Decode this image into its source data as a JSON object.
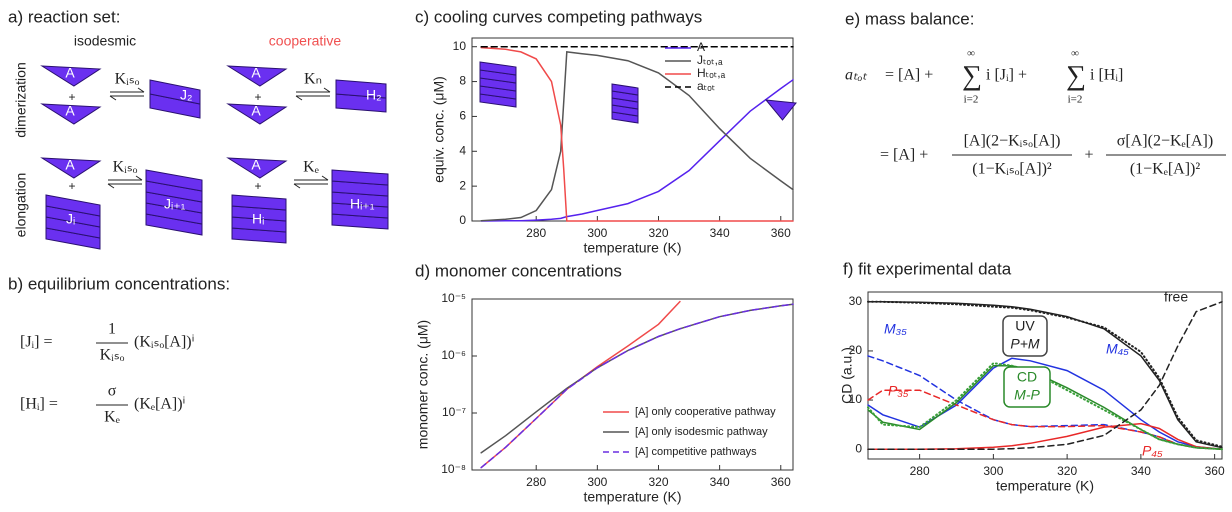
{
  "panels": {
    "a": {
      "title": "a) reaction set:",
      "isodesmic": "isodesmic",
      "cooperative": "cooperative",
      "dimerization": "dimerization",
      "elongation": "elongation",
      "monomer": "A",
      "plus": "+",
      "K_iso": "Kᵢₛₒ",
      "K_n": "Kₙ",
      "K_e": "Kₑ",
      "J2": "J₂",
      "H2": "H₂",
      "Ji": "Jᵢ",
      "Ji1": "Jᵢ₊₁",
      "Hi": "Hᵢ",
      "Hi1": "Hᵢ₊₁"
    },
    "b": {
      "title": "b) equilibrium concentrations:",
      "eq1": {
        "lhs": "[Jᵢ] =",
        "num": "1",
        "den": "Kᵢₛₒ",
        "rhs": "(Kᵢₛₒ[A])ⁱ"
      },
      "eq2": {
        "lhs": "[Hᵢ] =",
        "num": "σ",
        "den": "Kₑ",
        "rhs": "(Kₑ[A])ⁱ"
      }
    },
    "e": {
      "title": "e) mass balance:",
      "line1": {
        "lhs": "aₜₒₜ",
        "start": "= [A] +",
        "sum": "∑",
        "upper": "∞",
        "lower": "i=2",
        "term1": "i [Jᵢ] +",
        "term2": "i [Hᵢ]"
      },
      "line2": {
        "start": "= [A] +",
        "num1": "[A](2−Kᵢₛₒ[A])",
        "den1": "(1−Kᵢₛₒ[A])²",
        "plus": "+",
        "num2": "σ[A](2−Kₑ[A])",
        "den2": "(1−Kₑ[A])²"
      }
    }
  },
  "chart_data": [
    {
      "type": "line",
      "title": "c) cooling curves competing pathways",
      "x_label": "temperature (K)",
      "y_label": "equiv. conc. (μM)",
      "xlim": [
        259,
        364
      ],
      "ylim": [
        0,
        10.5
      ],
      "xticks": [
        280,
        300,
        320,
        340,
        360
      ],
      "yticks": [
        0,
        2,
        4,
        6,
        8,
        10
      ],
      "legend": "upper right",
      "x": [
        262,
        270,
        275,
        280,
        285,
        288,
        289,
        290,
        295,
        300,
        310,
        320,
        330,
        340,
        350,
        360,
        364
      ],
      "series": [
        {
          "name": "A",
          "color": "#5522ee",
          "style": "solid",
          "values": [
            0,
            0.01,
            0.02,
            0.05,
            0.1,
            0.15,
            0.2,
            0.25,
            0.4,
            0.6,
            1.0,
            1.7,
            2.9,
            4.6,
            6.3,
            7.6,
            8.1
          ]
        },
        {
          "name": "Jₜₒₜ,ₐ",
          "color": "#555555",
          "style": "solid",
          "values": [
            0.02,
            0.1,
            0.2,
            0.6,
            1.8,
            4.0,
            6.8,
            9.7,
            9.6,
            9.5,
            9.2,
            8.5,
            7.2,
            5.3,
            3.6,
            2.3,
            1.8
          ]
        },
        {
          "name": "Hₜₒₜ,ₐ",
          "color": "#f04a4a",
          "style": "solid",
          "values": [
            9.95,
            9.85,
            9.7,
            9.3,
            8.0,
            5.5,
            3.0,
            0,
            0,
            0,
            0,
            0,
            0,
            0,
            0,
            0,
            0
          ]
        },
        {
          "name": "aₜₒₜ",
          "color": "#000000",
          "style": "dashed",
          "values": [
            10,
            10,
            10,
            10,
            10,
            10,
            10,
            10,
            10,
            10,
            10,
            10,
            10,
            10,
            10,
            10,
            10
          ]
        }
      ]
    },
    {
      "type": "line",
      "title": "d) monomer concentrations",
      "x_label": "temperature (K)",
      "y_label": "monomer conc. (μM)",
      "yscale": "log",
      "xlim": [
        259,
        364
      ],
      "ylim": [
        1e-08,
        1e-05
      ],
      "xticks": [
        280,
        300,
        320,
        340,
        360
      ],
      "yticks": [
        {
          "value": 1e-08,
          "label": "10⁻⁸"
        },
        {
          "value": 1e-07,
          "label": "10⁻⁷"
        },
        {
          "value": 1e-06,
          "label": "10⁻⁶"
        },
        {
          "value": 1e-05,
          "label": "10⁻⁵"
        }
      ],
      "legend": "lower right",
      "x": [
        262,
        270,
        280,
        290,
        300,
        310,
        320,
        327,
        340,
        350,
        360,
        364
      ],
      "series": [
        {
          "name": "[A] only cooperative pathway",
          "color": "#f04a4a",
          "style": "solid",
          "values": [
            1.1e-08,
            2.5e-08,
            8e-08,
            2.6e-07,
            6.5e-07,
            1.5e-06,
            3.6e-06,
            9e-06,
            null,
            null,
            null,
            null
          ]
        },
        {
          "name": "[A] only isodesmic pathway",
          "color": "#555555",
          "style": "solid",
          "values": [
            2e-08,
            4e-08,
            1.05e-07,
            2.7e-07,
            6.2e-07,
            1.25e-06,
            2.2e-06,
            3e-06,
            4.9e-06,
            6.3e-06,
            7.6e-06,
            8.1e-06
          ]
        },
        {
          "name": "[A] competitive pathways",
          "color": "#6a2ee0",
          "style": "dashed",
          "values": [
            1.1e-08,
            2.5e-08,
            8e-08,
            2.6e-07,
            6.2e-07,
            1.25e-06,
            2.2e-06,
            3e-06,
            4.9e-06,
            6.3e-06,
            7.6e-06,
            8.1e-06
          ]
        }
      ]
    },
    {
      "type": "line",
      "title": "f) fit experimental data",
      "x_label": "temperature (K)",
      "y_label": "CD (a.u.)",
      "xlim": [
        266,
        362
      ],
      "ylim": [
        -2,
        32
      ],
      "xticks": [
        280,
        300,
        320,
        340,
        360
      ],
      "yticks": [
        0,
        10,
        20,
        30
      ],
      "annotations": [
        "UV",
        "P+M",
        "CD",
        "M-P"
      ],
      "x": [
        266,
        270,
        280,
        290,
        300,
        305,
        310,
        320,
        330,
        340,
        345,
        350,
        355,
        362
      ],
      "series": [
        {
          "color": "#222222",
          "style": "solid",
          "values": [
            30,
            30,
            29.9,
            29.7,
            29.3,
            29,
            28.5,
            27,
            24.5,
            19,
            14,
            6,
            1.5,
            0.3
          ]
        },
        {
          "color": "#222222",
          "style": "dotted",
          "values": [
            30,
            30,
            29.8,
            29.5,
            29,
            28.8,
            28.3,
            26.8,
            24.8,
            19.8,
            14.5,
            6.5,
            1.8,
            0.5
          ]
        },
        {
          "name": "M₄₅",
          "color": "#2233e0",
          "style": "solid",
          "values": [
            9,
            7,
            4.5,
            9,
            16.5,
            18.5,
            18,
            16,
            12,
            6,
            3.5,
            1.5,
            0.5,
            0
          ]
        },
        {
          "name": "M₃₅",
          "color": "#2233e0",
          "style": "dashed",
          "values": [
            19,
            18,
            15,
            10,
            6,
            5,
            4.6,
            4.8,
            5,
            3.5,
            2.5,
            1,
            0.3,
            0
          ]
        },
        {
          "name": "P₄₅",
          "color": "#e82828",
          "style": "solid",
          "values": [
            0,
            0,
            0,
            0.1,
            0.4,
            0.7,
            1.2,
            2.6,
            4.5,
            5.2,
            4.2,
            2,
            0.5,
            0
          ]
        },
        {
          "name": "P₃₅",
          "color": "#e82828",
          "style": "dashed",
          "values": [
            10,
            12,
            12,
            9,
            6,
            5,
            4.6,
            4.6,
            4.8,
            3.5,
            2.5,
            1,
            0.3,
            0
          ]
        },
        {
          "color": "#2a8a2a",
          "style": "solid",
          "values": [
            8,
            5.5,
            4,
            9.5,
            17,
            17,
            16,
            12.5,
            8.5,
            4,
            2,
            1,
            0.3,
            0
          ]
        },
        {
          "color": "#3aa03a",
          "style": "dotted",
          "values": [
            8.5,
            5,
            4.5,
            10,
            17.5,
            17,
            16,
            12,
            8,
            4,
            2,
            1,
            0.3,
            0
          ]
        },
        {
          "name": "free",
          "color": "#222222",
          "style": "dashed",
          "values": [
            0,
            0,
            0,
            0,
            0,
            0.1,
            0.3,
            1,
            2.8,
            8,
            13,
            21,
            28,
            30
          ]
        }
      ]
    }
  ]
}
